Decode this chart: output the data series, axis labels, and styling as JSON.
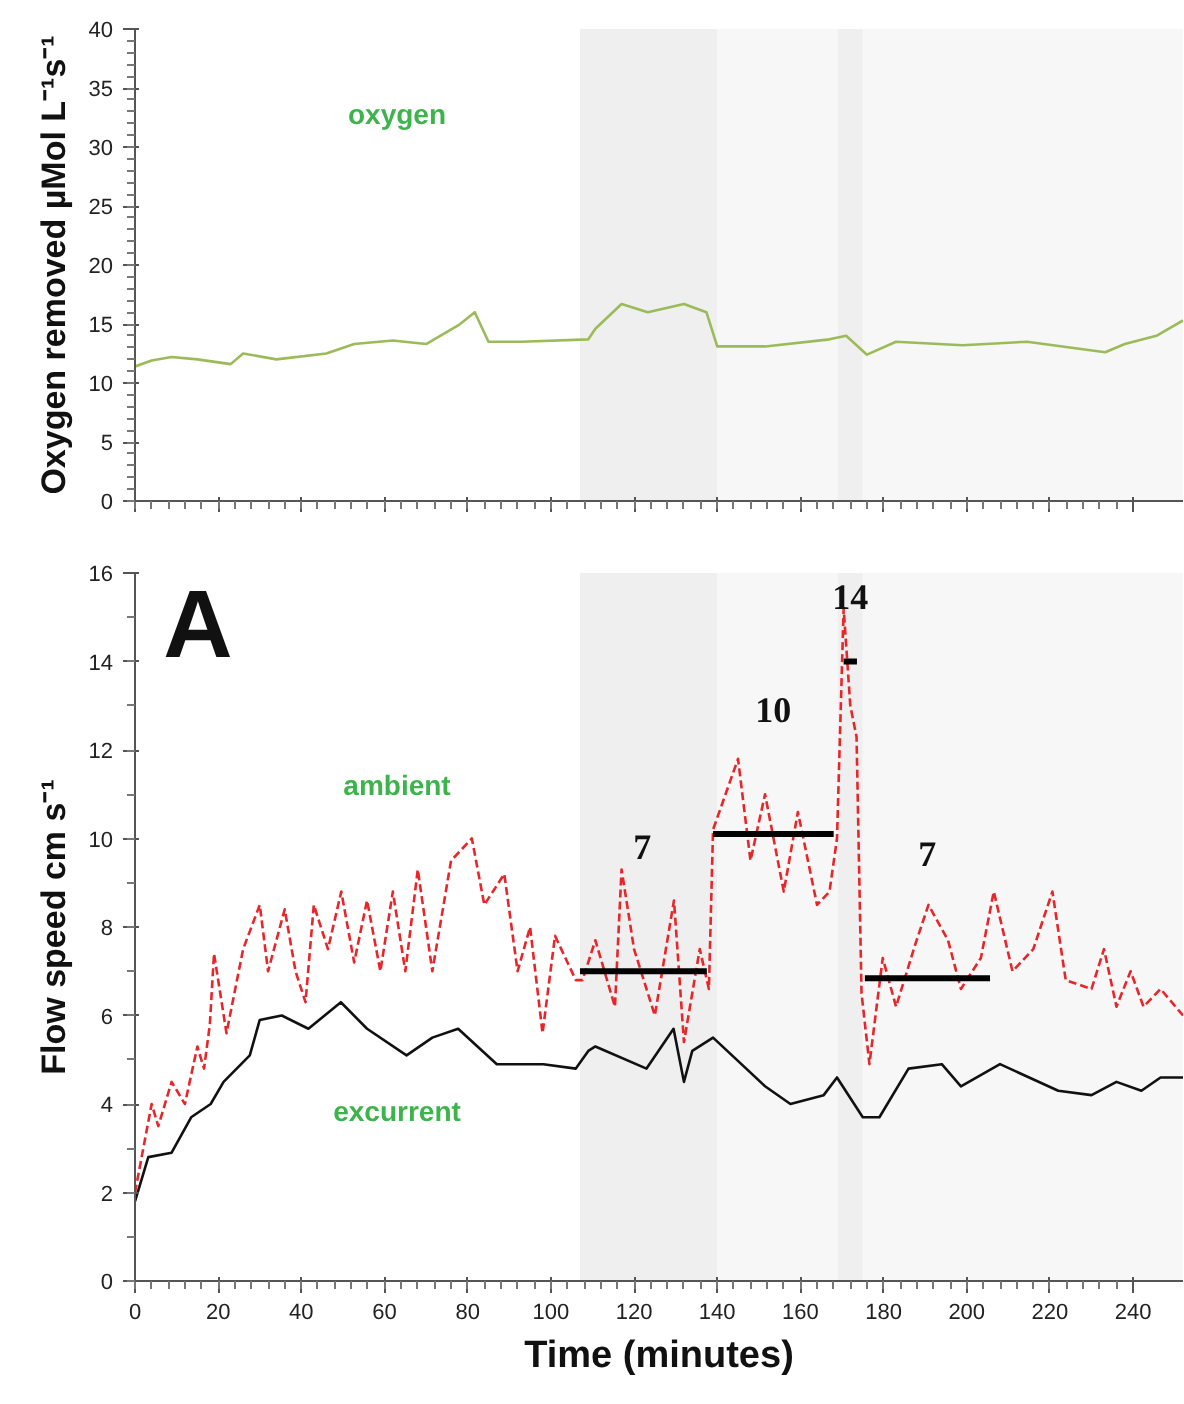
{
  "chart_data": [
    {
      "type": "line",
      "ylabel": "Oxygen removed µMol L⁻¹s⁻¹",
      "xlim": [
        0,
        252
      ],
      "ylim": [
        0,
        40
      ],
      "yticks": [
        0,
        5,
        10,
        15,
        20,
        25,
        30,
        35,
        40
      ],
      "xticks": [
        0,
        20,
        40,
        60,
        80,
        100,
        120,
        140,
        160,
        180,
        200,
        220,
        240
      ],
      "tick_labels": "y",
      "grid": false,
      "bands": [
        {
          "axis": "x",
          "from": 107,
          "to": 140,
          "color": "#efefef"
        },
        {
          "axis": "x",
          "from": 140,
          "to": 169,
          "color": "#f7f7f7"
        },
        {
          "axis": "x",
          "from": 169,
          "to": 175,
          "color": "#efefef"
        },
        {
          "axis": "x",
          "from": 175,
          "to": 252,
          "color": "#f7f7f7"
        }
      ],
      "series": [
        {
          "name": "oxygen",
          "color": "#9bbb59",
          "line_style": "solid",
          "x": [
            0,
            4,
            8.8,
            15,
            23,
            26,
            34,
            46,
            52.7,
            62,
            70,
            77.8,
            81.7,
            85,
            93,
            109,
            110.7,
            117,
            123.3,
            132,
            137.4,
            140,
            151.5,
            167,
            171,
            176,
            183,
            199,
            214.5,
            233.3,
            238,
            245.6,
            252
          ],
          "values": [
            11.4,
            11.9,
            12.2,
            12.0,
            11.6,
            12.5,
            12.0,
            12.5,
            13.3,
            13.6,
            13.3,
            14.9,
            16.0,
            13.5,
            13.5,
            13.7,
            14.6,
            16.7,
            16.0,
            16.7,
            16.0,
            13.1,
            13.1,
            13.7,
            14.0,
            12.4,
            13.5,
            13.2,
            13.5,
            12.6,
            13.3,
            14.0,
            15.3
          ]
        }
      ]
    },
    {
      "type": "line",
      "xlabel": "Time (minutes)",
      "ylabel": "Flow speed cm s⁻¹",
      "xlim": [
        0,
        252
      ],
      "ylim": [
        0,
        16
      ],
      "yticks": [
        0,
        2,
        4,
        6,
        8,
        10,
        12,
        14,
        16
      ],
      "xticks": [
        0,
        20,
        40,
        60,
        80,
        100,
        120,
        140,
        160,
        180,
        200,
        220,
        240
      ],
      "grid": false,
      "bands": [
        {
          "axis": "x",
          "from": 107,
          "to": 140,
          "color": "#efefef"
        },
        {
          "axis": "x",
          "from": 140,
          "to": 169,
          "color": "#f7f7f7"
        },
        {
          "axis": "x",
          "from": 169,
          "to": 175,
          "color": "#efefef"
        },
        {
          "axis": "x",
          "from": 175,
          "to": 252,
          "color": "#f7f7f7"
        }
      ],
      "annotations": [
        "A",
        {
          "text": "7",
          "x": 122,
          "y": 7.0
        },
        {
          "text": "10",
          "x": 153.5,
          "y": 10.1
        },
        {
          "text": "14",
          "x": 172,
          "y": 14.0
        },
        {
          "text": "7",
          "x": 190.5,
          "y": 6.84
        }
      ],
      "series": [
        {
          "name": "ambient",
          "color": "#e8262a",
          "line_style": "dashed",
          "x": [
            0,
            4,
            5.6,
            8.8,
            12,
            15,
            16.6,
            18,
            19,
            22,
            26,
            30,
            32,
            36,
            38.6,
            41,
            43,
            46.4,
            49.6,
            52.7,
            55.8,
            59,
            62,
            65,
            68,
            71.5,
            76,
            81,
            84,
            88.8,
            92,
            95,
            98,
            101,
            106,
            107.6,
            110.7,
            115.4,
            117,
            120,
            125,
            129.6,
            132,
            135.8,
            138,
            139,
            145,
            148,
            151.5,
            156,
            159.4,
            164,
            167,
            168.8,
            170.4,
            172,
            173.5,
            174.7,
            176.6,
            179.8,
            183,
            187.6,
            190.8,
            195.5,
            198.6,
            203.4,
            206.5,
            211,
            216,
            220.6,
            223.8,
            230,
            233,
            236,
            239.4,
            242.5,
            246.6,
            252
          ],
          "values": [
            2.0,
            4.0,
            3.5,
            4.5,
            4.0,
            5.3,
            4.8,
            5.8,
            7.4,
            5.6,
            7.5,
            8.5,
            7.0,
            8.4,
            7.0,
            6.3,
            8.5,
            7.5,
            8.8,
            7.2,
            8.6,
            7.0,
            8.8,
            7.0,
            9.3,
            7.0,
            9.5,
            10.0,
            8.5,
            9.2,
            7.0,
            8.0,
            5.6,
            7.8,
            6.8,
            6.8,
            7.7,
            6.2,
            9.3,
            7.5,
            6.0,
            8.6,
            5.4,
            7.5,
            6.6,
            10.2,
            11.8,
            9.5,
            11.0,
            8.8,
            10.6,
            8.5,
            8.8,
            10.0,
            15.2,
            13.0,
            12.3,
            6.5,
            4.9,
            7.3,
            6.2,
            7.6,
            8.5,
            7.7,
            6.6,
            7.3,
            8.8,
            7.0,
            7.5,
            8.8,
            6.8,
            6.6,
            7.5,
            6.2,
            7.0,
            6.2,
            6.6,
            6.0
          ]
        },
        {
          "name": "excurrent",
          "color": "#111111",
          "line_style": "solid",
          "x": [
            0,
            3.2,
            8.8,
            13.5,
            18.2,
            21.3,
            27.6,
            30,
            35.3,
            41.7,
            49.5,
            55.8,
            65.3,
            71.5,
            77.7,
            87,
            98.2,
            106,
            109,
            110.7,
            123,
            129.5,
            132,
            134,
            139,
            151.5,
            157.6,
            165.6,
            168.8,
            175,
            179,
            186,
            194,
            198.6,
            208,
            222,
            230,
            236,
            242,
            246.6,
            252
          ],
          "values": [
            1.8,
            2.8,
            2.9,
            3.7,
            4.0,
            4.5,
            5.1,
            5.9,
            6.0,
            5.7,
            6.3,
            5.7,
            5.1,
            5.5,
            5.7,
            4.9,
            4.9,
            4.8,
            5.2,
            5.3,
            4.8,
            5.7,
            4.5,
            5.2,
            5.5,
            4.4,
            4.0,
            4.2,
            4.6,
            3.7,
            3.7,
            4.8,
            4.9,
            4.4,
            4.9,
            4.3,
            4.2,
            4.5,
            4.3,
            4.6,
            4.6
          ]
        },
        {
          "type": "line",
          "color": "#000000",
          "line_style": "solid",
          "x": [
            107,
            137.5
          ],
          "values": [
            7.0,
            7.0
          ]
        },
        {
          "type": "line",
          "color": "#000000",
          "line_style": "solid",
          "x": [
            139,
            168
          ],
          "values": [
            10.1,
            10.1
          ]
        },
        {
          "type": "line",
          "color": "#000000",
          "line_style": "solid",
          "x": [
            170.4,
            173.6
          ],
          "values": [
            14.0,
            14.0
          ]
        },
        {
          "type": "line",
          "color": "#000000",
          "line_style": "solid",
          "x": [
            175.5,
            205.6
          ],
          "values": [
            6.84,
            6.84
          ]
        }
      ]
    }
  ]
}
